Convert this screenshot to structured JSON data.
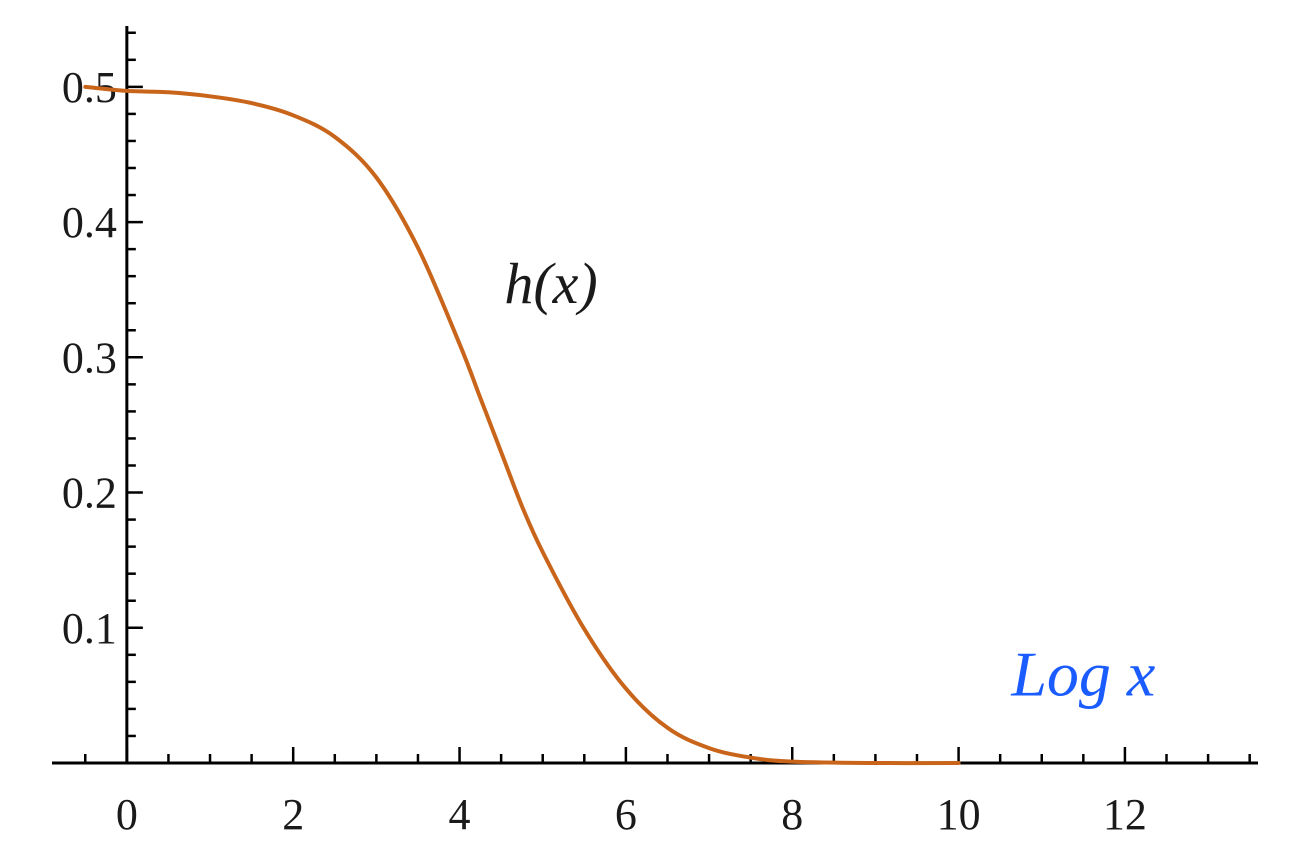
{
  "chart_data": {
    "type": "line",
    "title": "",
    "xlabel": "",
    "ylabel": "",
    "xlim": [
      -0.9,
      13.6
    ],
    "ylim": [
      0,
      0.545
    ],
    "x_ticks": [
      0,
      2,
      4,
      6,
      8,
      10,
      12
    ],
    "y_ticks": [
      0.1,
      0.2,
      0.3,
      0.4,
      0.5
    ],
    "x_tick_labels": [
      "0",
      "2",
      "4",
      "6",
      "8",
      "10",
      "12"
    ],
    "y_tick_labels": [
      "0.1",
      "0.2",
      "0.3",
      "0.4",
      "0.5"
    ],
    "x_minor_step": 0.5,
    "y_minor_step": 0.02,
    "grid": false,
    "series": [
      {
        "name": "h(x)",
        "color": "#c8651b",
        "x": [
          -0.5,
          0,
          0.5,
          1,
          1.5,
          2,
          2.5,
          3,
          3.5,
          4,
          4.25,
          4.5,
          4.75,
          5,
          5.5,
          6,
          6.5,
          7,
          7.5,
          8,
          9,
          10
        ],
        "y": [
          0.5,
          0.497,
          0.496,
          0.493,
          0.488,
          0.479,
          0.463,
          0.433,
          0.381,
          0.31,
          0.27,
          0.23,
          0.19,
          0.156,
          0.099,
          0.055,
          0.026,
          0.011,
          0.004,
          0.001,
          0.0,
          0.0
        ]
      }
    ],
    "annotations": [
      {
        "text": "h(x)",
        "x": 5.1,
        "y": 0.34,
        "color": "#1a1a1a"
      },
      {
        "text": "Log x",
        "x": 11.5,
        "y": 0.05,
        "color": "#1a5cff"
      }
    ]
  }
}
